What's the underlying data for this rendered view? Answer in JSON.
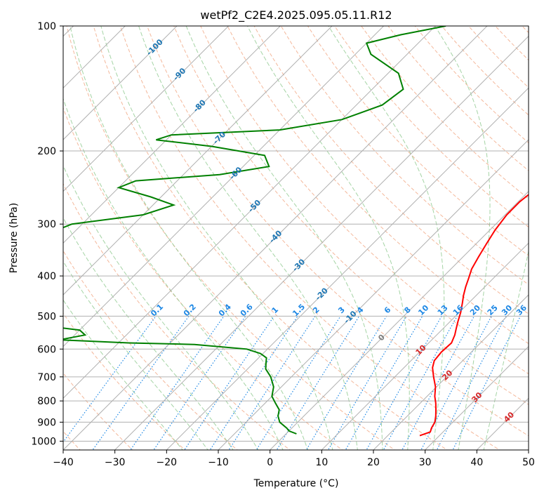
{
  "chart_data": {
    "type": "line",
    "title": "wetPf2_C2E4.2025.095.05.11.R12",
    "xlabel": "Temperature (°C)",
    "ylabel": "Pressure (hPa)",
    "xlim": [
      -40,
      50
    ],
    "ylim": [
      1050,
      100
    ],
    "y_scale": "log",
    "skew_deg": 45,
    "grid": true,
    "x_ticks": [
      "−40",
      "−30",
      "−20",
      "−10",
      "0",
      "10",
      "20",
      "30",
      "40",
      "50"
    ],
    "y_ticks": [
      "100",
      "200",
      "300",
      "400",
      "500",
      "600",
      "700",
      "800",
      "900",
      "1000"
    ],
    "series": [
      {
        "color": "#ff0000",
        "points": [
          [
            26.2,
            970
          ],
          [
            27.5,
            950
          ],
          [
            27.0,
            930
          ],
          [
            26.5,
            900
          ],
          [
            25.5,
            870
          ],
          [
            24.3,
            840
          ],
          [
            23.0,
            810
          ],
          [
            21.5,
            780
          ],
          [
            19.8,
            740
          ],
          [
            17.5,
            700
          ],
          [
            15.5,
            665
          ],
          [
            14.5,
            640
          ],
          [
            14.2,
            610
          ],
          [
            14.4,
            580
          ],
          [
            13.5,
            555
          ],
          [
            12.5,
            535
          ],
          [
            11.5,
            515
          ],
          [
            10.3,
            490
          ],
          [
            8.8,
            465
          ],
          [
            7.5,
            445
          ],
          [
            6.3,
            425
          ],
          [
            5.2,
            405
          ],
          [
            4.0,
            385
          ],
          [
            3.0,
            360
          ],
          [
            2.0,
            335
          ],
          [
            1.0,
            310
          ],
          [
            0.3,
            285
          ],
          [
            0.3,
            265
          ],
          [
            1.0,
            245
          ],
          [
            1.8,
            225
          ],
          [
            3.0,
            205
          ],
          [
            4.5,
            190
          ],
          [
            5.5,
            175
          ],
          [
            6.0,
            160
          ],
          [
            6.0,
            140
          ],
          [
            5.8,
            125
          ],
          [
            6.3,
            115
          ],
          [
            7.5,
            108
          ],
          [
            8.5,
            102
          ],
          [
            8.8,
            100
          ]
        ]
      },
      {
        "color": "#008000",
        "points": [
          [
            2.0,
            960
          ],
          [
            0.0,
            945
          ],
          [
            -1.0,
            930
          ],
          [
            -3.5,
            900
          ],
          [
            -5.0,
            870
          ],
          [
            -6.0,
            840
          ],
          [
            -8.0,
            810
          ],
          [
            -10.0,
            780
          ],
          [
            -11.5,
            740
          ],
          [
            -14.0,
            700
          ],
          [
            -16.5,
            670
          ],
          [
            -17.5,
            650
          ],
          [
            -18.5,
            630
          ],
          [
            -20.5,
            615
          ],
          [
            -24,
            600
          ],
          [
            -35,
            585
          ],
          [
            -48,
            580
          ],
          [
            -62,
            570
          ],
          [
            -58,
            555
          ],
          [
            -60,
            540
          ],
          [
            -66,
            530
          ],
          [
            -72,
            510
          ],
          [
            -78,
            505
          ],
          [
            -80,
            490
          ],
          [
            -82,
            450
          ],
          [
            -84,
            400
          ],
          [
            -86,
            350
          ],
          [
            -87,
            330
          ],
          [
            -82,
            300
          ],
          [
            -70,
            285
          ],
          [
            -66,
            270
          ],
          [
            -72,
            258
          ],
          [
            -80,
            245
          ],
          [
            -78,
            236
          ],
          [
            -63,
            228
          ],
          [
            -55,
            218
          ],
          [
            -58,
            205
          ],
          [
            -70,
            195
          ],
          [
            -82,
            188
          ],
          [
            -80,
            183
          ],
          [
            -60,
            178
          ],
          [
            -50,
            168
          ],
          [
            -45,
            155
          ],
          [
            -44,
            142
          ],
          [
            -48,
            130
          ],
          [
            -57,
            117
          ],
          [
            -60,
            110
          ],
          [
            -55,
            105
          ],
          [
            -48,
            100
          ]
        ]
      }
    ],
    "isotherm_line_values": [
      -150,
      -140,
      -130,
      -120,
      -110,
      -100,
      -90,
      -80,
      -70,
      -60,
      -50,
      -40,
      -30,
      -20,
      -10,
      0,
      10,
      20,
      30,
      40,
      50
    ],
    "isotherm_labels": {
      "color": "#1f77b4",
      "values": [
        "-100",
        "-90",
        "-80",
        "-70",
        "-60",
        "-50",
        "-40",
        "-30",
        "-20",
        "-10"
      ]
    },
    "freezing_label": "0",
    "warm_labels": {
      "color": "#d62728",
      "values": [
        "10",
        "20",
        "30",
        "40"
      ]
    },
    "mixing_ratio": {
      "color": "#1e88e5",
      "values": [
        "0.1",
        "0.2",
        "0.4",
        "0.6",
        "1",
        "1.5",
        "2",
        "3",
        "4",
        "6",
        "8",
        "10",
        "13",
        "16",
        "20",
        "25",
        "30",
        "36"
      ]
    },
    "dry_adiabat_color": "#f0a07a",
    "moist_adiabat_color": "#8fc98f",
    "grid_color": "#b0b0b0",
    "curve_color": "#c8a27a"
  }
}
